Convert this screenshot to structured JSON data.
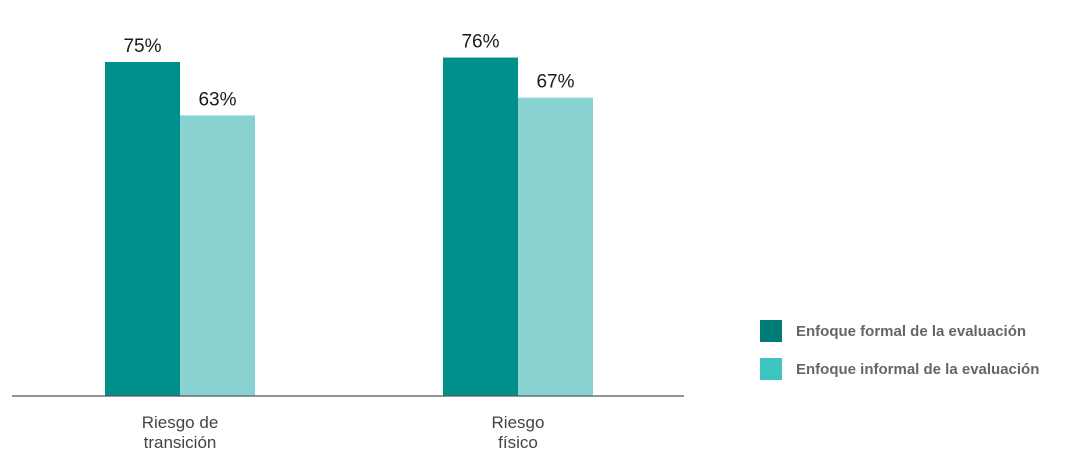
{
  "chart_data": {
    "type": "bar",
    "categories": [
      "Riesgo de transición",
      "Riesgo físico"
    ],
    "category_lines": [
      [
        "Riesgo de",
        "transición"
      ],
      [
        "Riesgo",
        "físico"
      ]
    ],
    "series": [
      {
        "name": "Enfoque formal de la evaluación",
        "values": [
          75,
          76
        ],
        "color": "#008f8a",
        "legend_color": "#007c78"
      },
      {
        "name": "Enfoque informal de la evaluación",
        "values": [
          63,
          67
        ],
        "color": "#88d3d1",
        "legend_color": "#3ec4c1"
      }
    ],
    "value_suffix": "%",
    "ylim": [
      0,
      80
    ],
    "grid": false,
    "legend_position": "right"
  }
}
